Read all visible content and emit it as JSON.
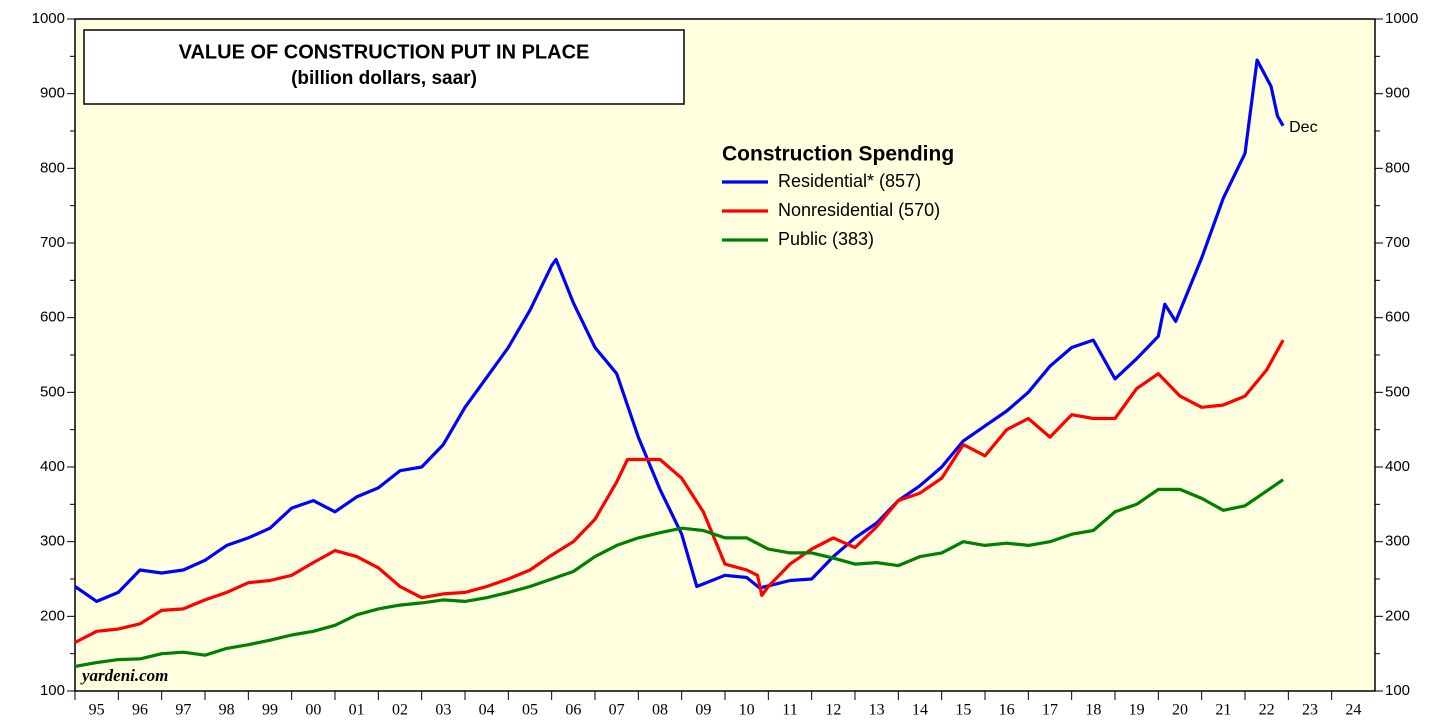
{
  "chart_data": {
    "type": "line",
    "title": "VALUE OF CONSTRUCTION PUT IN PLACE",
    "subtitle": "(billion dollars, saar)",
    "legend_title": "Construction Spending",
    "annotation": "Dec",
    "source": "yardeni.com",
    "xlim": [
      1995,
      2025
    ],
    "ylim": [
      100,
      1000
    ],
    "yticks": [
      100,
      200,
      300,
      400,
      500,
      600,
      700,
      800,
      900,
      1000
    ],
    "yminorticks": [
      150,
      250,
      350,
      450,
      550,
      650,
      750,
      850,
      950
    ],
    "xticks": [
      {
        "value": 1995,
        "label": "95"
      },
      {
        "value": 1996,
        "label": "96"
      },
      {
        "value": 1997,
        "label": "97"
      },
      {
        "value": 1998,
        "label": "98"
      },
      {
        "value": 1999,
        "label": "99"
      },
      {
        "value": 2000,
        "label": "00"
      },
      {
        "value": 2001,
        "label": "01"
      },
      {
        "value": 2002,
        "label": "02"
      },
      {
        "value": 2003,
        "label": "03"
      },
      {
        "value": 2004,
        "label": "04"
      },
      {
        "value": 2005,
        "label": "05"
      },
      {
        "value": 2006,
        "label": "06"
      },
      {
        "value": 2007,
        "label": "07"
      },
      {
        "value": 2008,
        "label": "08"
      },
      {
        "value": 2009,
        "label": "09"
      },
      {
        "value": 2010,
        "label": "10"
      },
      {
        "value": 2011,
        "label": "11"
      },
      {
        "value": 2012,
        "label": "12"
      },
      {
        "value": 2013,
        "label": "13"
      },
      {
        "value": 2014,
        "label": "14"
      },
      {
        "value": 2015,
        "label": "15"
      },
      {
        "value": 2016,
        "label": "16"
      },
      {
        "value": 2017,
        "label": "17"
      },
      {
        "value": 2018,
        "label": "18"
      },
      {
        "value": 2019,
        "label": "19"
      },
      {
        "value": 2020,
        "label": "20"
      },
      {
        "value": 2021,
        "label": "21"
      },
      {
        "value": 2022,
        "label": "22"
      },
      {
        "value": 2023,
        "label": "23"
      },
      {
        "value": 2024,
        "label": "24"
      }
    ],
    "series": [
      {
        "name": "Residential* (857)",
        "color": "#0000ff",
        "x": [
          1995,
          1995.5,
          1996,
          1996.5,
          1997,
          1997.5,
          1998,
          1998.5,
          1999,
          1999.5,
          2000,
          2000.5,
          2001,
          2001.5,
          2002,
          2002.5,
          2003,
          2003.5,
          2004,
          2004.5,
          2005,
          2005.5,
          2006,
          2006.1,
          2006.5,
          2007,
          2007.5,
          2008,
          2008.5,
          2009,
          2009.35,
          2010,
          2010.5,
          2010.8,
          2011.5,
          2012,
          2012.5,
          2013,
          2013.5,
          2014,
          2014.5,
          2015,
          2015.5,
          2016,
          2016.5,
          2017,
          2017.5,
          2018,
          2018.5,
          2019,
          2019.5,
          2020,
          2020.15,
          2020.4,
          2021,
          2021.5,
          2022,
          2022.28,
          2022.6,
          2022.75,
          2022.88
        ],
        "values": [
          240,
          220,
          232,
          262,
          258,
          262,
          275,
          295,
          305,
          318,
          345,
          355,
          340,
          360,
          372,
          395,
          400,
          430,
          480,
          520,
          560,
          610,
          670,
          678,
          620,
          560,
          525,
          440,
          370,
          310,
          240,
          255,
          252,
          238,
          248,
          250,
          280,
          305,
          325,
          355,
          375,
          400,
          435,
          455,
          475,
          500,
          535,
          560,
          570,
          518,
          545,
          575,
          618,
          595,
          680,
          760,
          820,
          945,
          910,
          870,
          857
        ]
      },
      {
        "name": "Nonresidential (570)",
        "color": "#ff0000",
        "x": [
          1995,
          1995.5,
          1996,
          1996.5,
          1997,
          1997.5,
          1998,
          1998.5,
          1999,
          1999.5,
          2000,
          2000.5,
          2001,
          2001.5,
          2002,
          2002.5,
          2003,
          2003.5,
          2004,
          2004.5,
          2005,
          2005.5,
          2006,
          2006.5,
          2007,
          2007.5,
          2007.75,
          2008,
          2008.5,
          2009,
          2009.5,
          2010,
          2010.5,
          2010.75,
          2010.85,
          2011,
          2011.5,
          2012,
          2012.5,
          2013,
          2013.5,
          2014,
          2014.5,
          2015,
          2015.5,
          2016,
          2016.5,
          2017,
          2017.5,
          2018,
          2018.5,
          2019,
          2019.5,
          2020,
          2020.5,
          2021,
          2021.5,
          2022,
          2022.5,
          2022.88
        ],
        "values": [
          165,
          180,
          183,
          190,
          208,
          210,
          222,
          232,
          245,
          248,
          255,
          272,
          288,
          280,
          265,
          240,
          225,
          230,
          232,
          240,
          250,
          262,
          282,
          300,
          330,
          380,
          410,
          410,
          410,
          385,
          340,
          270,
          262,
          255,
          228,
          240,
          270,
          290,
          305,
          292,
          320,
          355,
          365,
          385,
          430,
          415,
          450,
          465,
          440,
          470,
          465,
          465,
          505,
          525,
          495,
          480,
          483,
          495,
          530,
          570
        ]
      },
      {
        "name": "Public (383)",
        "color": "#008000",
        "x": [
          1995,
          1995.5,
          1996,
          1996.5,
          1997,
          1997.5,
          1998,
          1998.5,
          1999,
          1999.5,
          2000,
          2000.5,
          2001,
          2001.5,
          2002,
          2002.5,
          2003,
          2003.5,
          2004,
          2004.5,
          2005,
          2005.5,
          2006,
          2006.5,
          2007,
          2007.5,
          2008,
          2008.5,
          2009,
          2009.5,
          2010,
          2010.5,
          2011,
          2011.5,
          2012,
          2012.5,
          2013,
          2013.5,
          2014,
          2014.5,
          2015,
          2015.5,
          2016,
          2016.5,
          2017,
          2017.5,
          2018,
          2018.5,
          2019,
          2019.5,
          2020,
          2020.5,
          2021,
          2021.5,
          2022,
          2022.5,
          2022.88
        ],
        "values": [
          133,
          138,
          142,
          143,
          150,
          152,
          148,
          157,
          162,
          168,
          175,
          180,
          188,
          202,
          210,
          215,
          218,
          222,
          220,
          225,
          232,
          240,
          250,
          260,
          280,
          295,
          305,
          312,
          318,
          315,
          305,
          305,
          290,
          285,
          285,
          278,
          270,
          272,
          268,
          280,
          285,
          300,
          295,
          298,
          295,
          300,
          310,
          315,
          340,
          350,
          370,
          370,
          358,
          342,
          348,
          368,
          383
        ]
      }
    ]
  }
}
